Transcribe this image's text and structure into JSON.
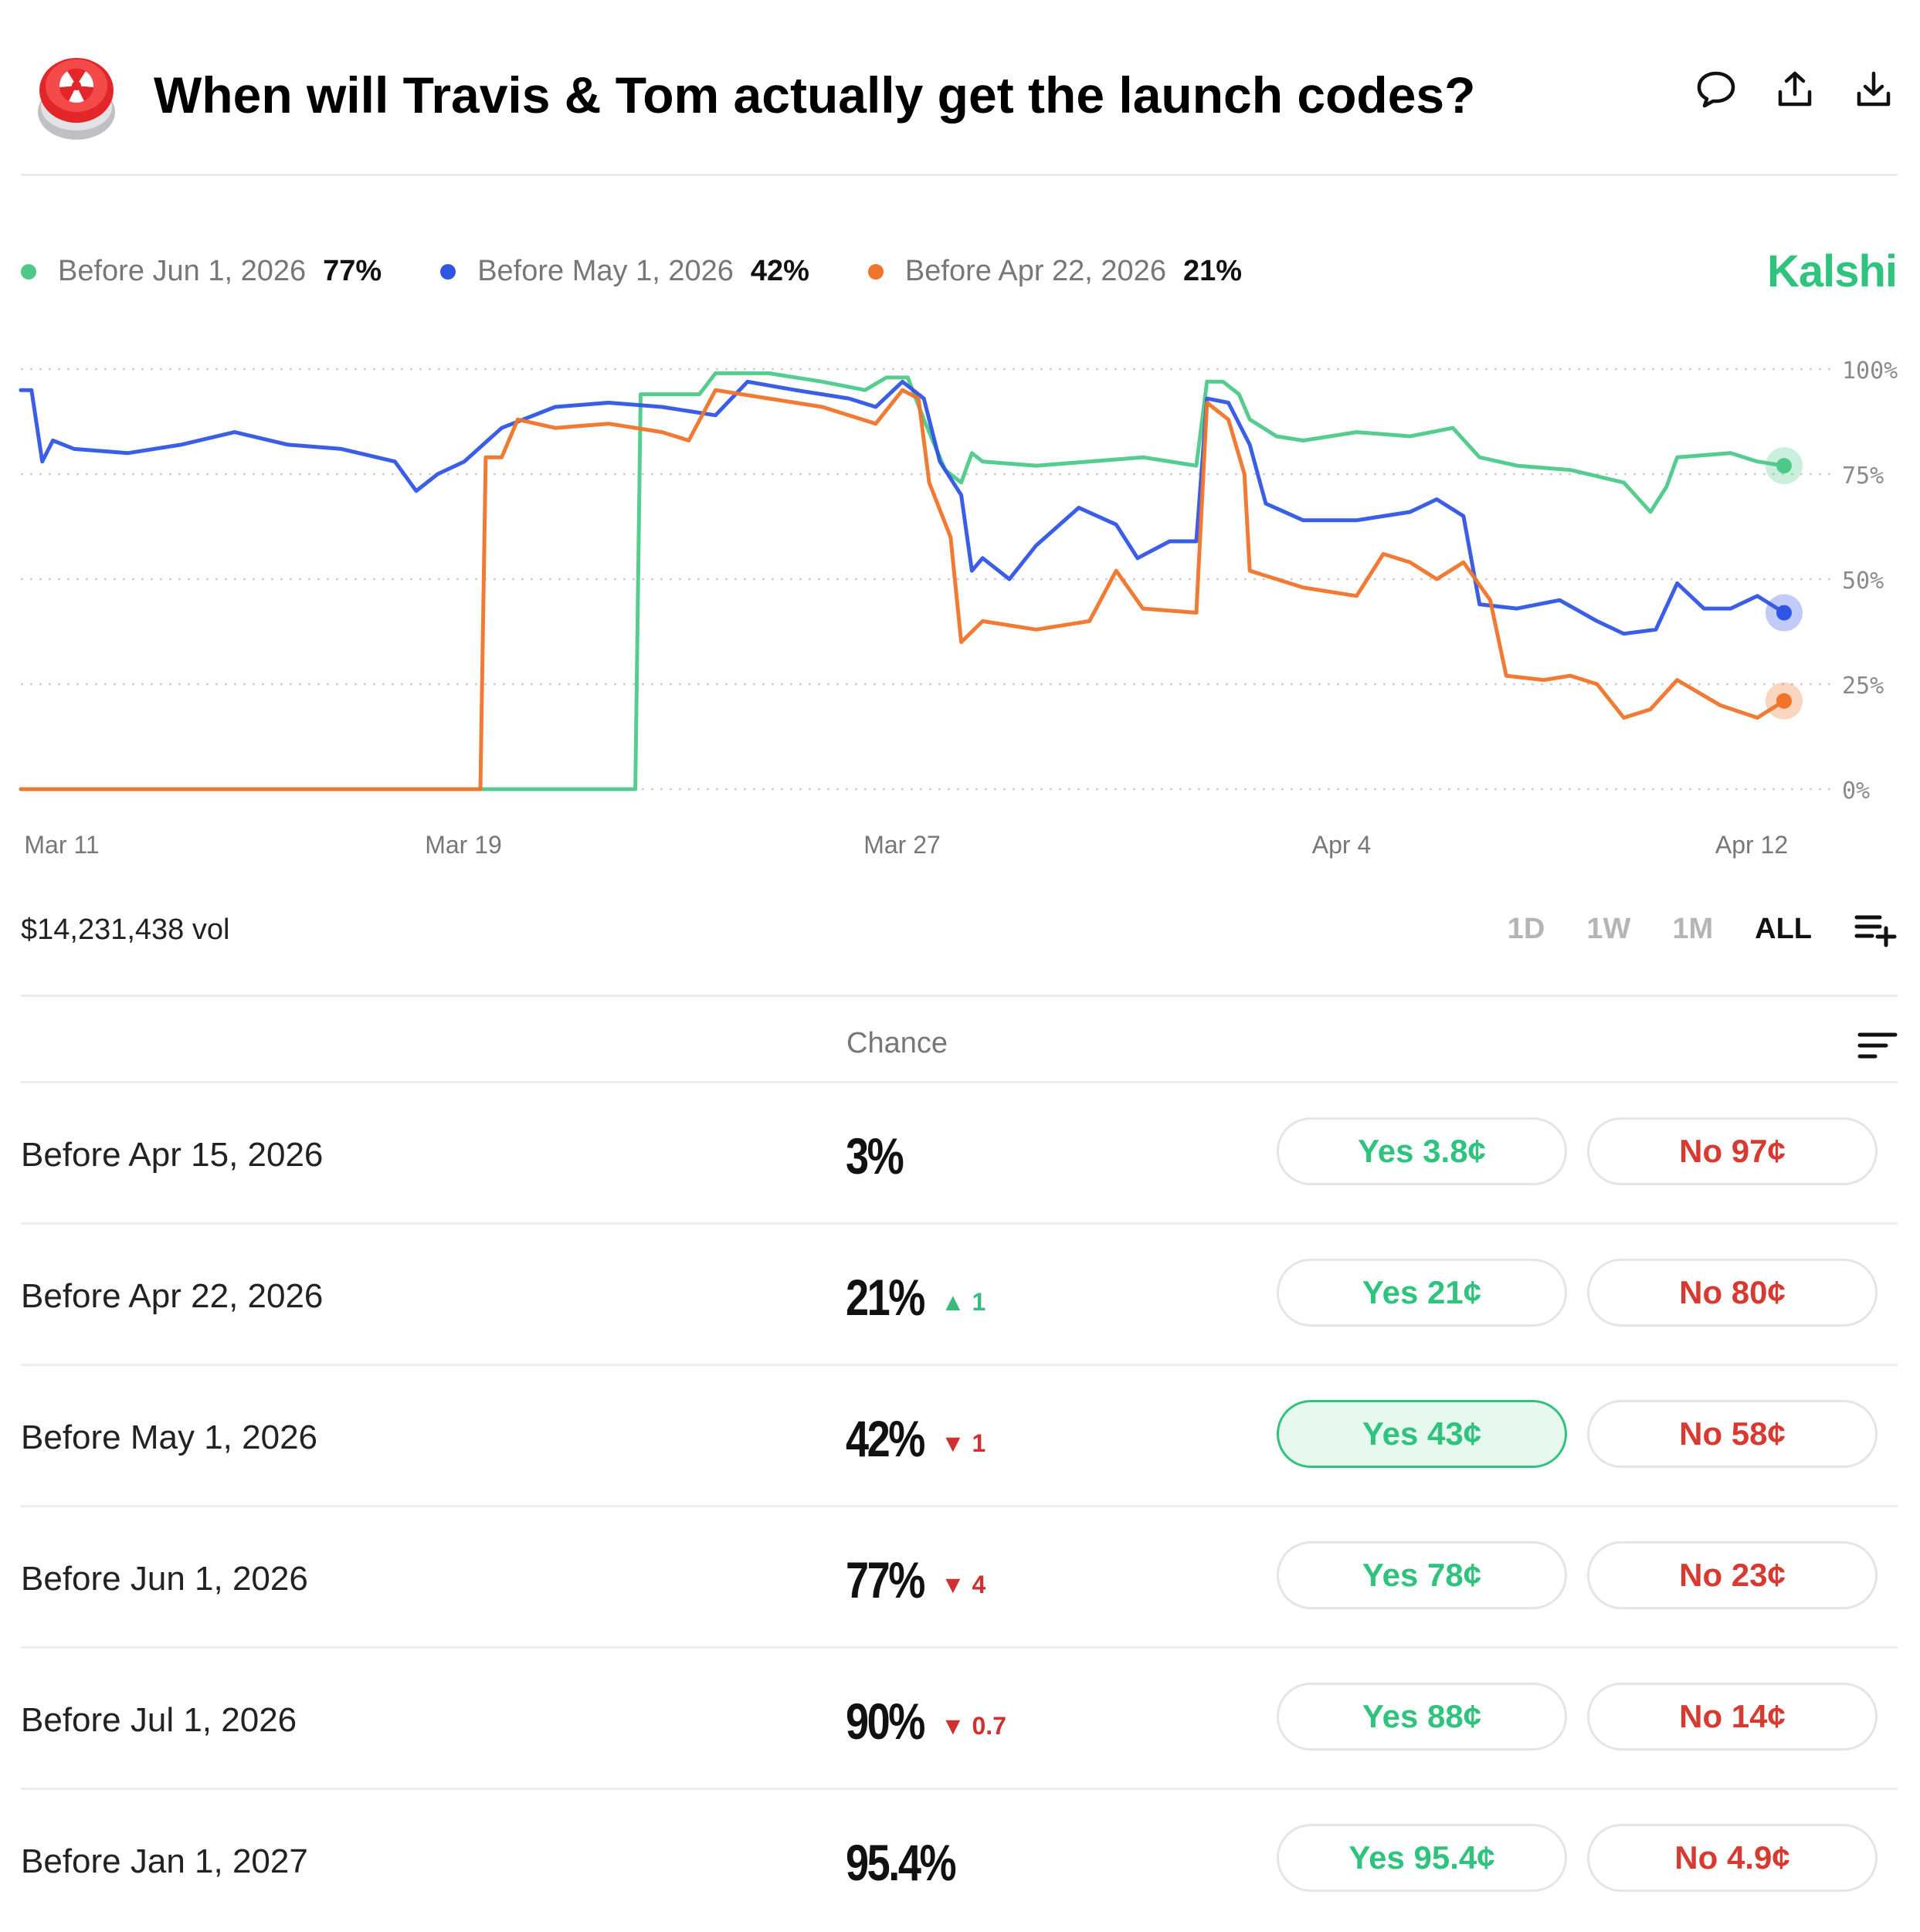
{
  "header": {
    "title": "When will Travis & Tom actually get the launch codes?",
    "icons": [
      "comment-icon",
      "share-icon",
      "download-icon"
    ]
  },
  "brand": "Kalshi",
  "legend": [
    {
      "label": "Before Jun 1, 2026",
      "value": "77%",
      "color": "#4ec98a"
    },
    {
      "label": "Before May 1, 2026",
      "value": "42%",
      "color": "#2f55e4"
    },
    {
      "label": "Before Apr 22, 2026",
      "value": "21%",
      "color": "#f0742a"
    }
  ],
  "chart_data": {
    "type": "line",
    "x_ticks": [
      "Mar 11",
      "Mar 19",
      "Mar 27",
      "Apr 4",
      "Apr 12"
    ],
    "y_ticks": [
      "100%",
      "75%",
      "50%",
      "25%",
      "0%"
    ],
    "ylim": [
      0,
      100
    ],
    "xlim": [
      "Mar 10",
      "Apr 12"
    ],
    "grid": true,
    "series": [
      {
        "name": "Before Jun 1, 2026",
        "color": "#4ec98a",
        "points": [
          [
            "Mar 10",
            0
          ],
          [
            "Mar 20",
            0
          ],
          [
            "Mar 21.5",
            0
          ],
          [
            "Mar 21.6",
            94
          ],
          [
            "Mar 22",
            94
          ],
          [
            "Mar 22.7",
            94
          ],
          [
            "Mar 23",
            99
          ],
          [
            "Mar 24",
            99
          ],
          [
            "Mar 25",
            97
          ],
          [
            "Mar 25.8",
            95
          ],
          [
            "Mar 26.2",
            98
          ],
          [
            "Mar 26.6",
            98
          ],
          [
            "Mar 26.9",
            88
          ],
          [
            "Mar 27.3",
            76
          ],
          [
            "Mar 27.6",
            73
          ],
          [
            "Mar 27.8",
            80
          ],
          [
            "Mar 28",
            78
          ],
          [
            "Mar 29",
            77
          ],
          [
            "Mar 30",
            78
          ],
          [
            "Mar 31",
            79
          ],
          [
            "Apr 1",
            77
          ],
          [
            "Apr 1.2",
            97
          ],
          [
            "Apr 1.5",
            97
          ],
          [
            "Apr 1.8",
            94
          ],
          [
            "Apr 2",
            88
          ],
          [
            "Apr 2.5",
            84
          ],
          [
            "Apr 3",
            83
          ],
          [
            "Apr 4",
            85
          ],
          [
            "Apr 5",
            84
          ],
          [
            "Apr 5.8",
            86
          ],
          [
            "Apr 6.3",
            79
          ],
          [
            "Apr 7",
            77
          ],
          [
            "Apr 8",
            76
          ],
          [
            "Apr 9",
            73
          ],
          [
            "Apr 9.5",
            66
          ],
          [
            "Apr 9.8",
            72
          ],
          [
            "Apr 10",
            79
          ],
          [
            "Apr 11",
            80
          ],
          [
            "Apr 11.5",
            78
          ],
          [
            "Apr 12",
            77
          ]
        ]
      },
      {
        "name": "Before May 1, 2026",
        "color": "#2f55e4",
        "points": [
          [
            "Mar 10",
            95
          ],
          [
            "Mar 10.2",
            95
          ],
          [
            "Mar 10.4",
            78
          ],
          [
            "Mar 10.6",
            83
          ],
          [
            "Mar 11",
            81
          ],
          [
            "Mar 12",
            80
          ],
          [
            "Mar 13",
            82
          ],
          [
            "Mar 14",
            85
          ],
          [
            "Mar 15",
            82
          ],
          [
            "Mar 16",
            81
          ],
          [
            "Mar 17",
            78
          ],
          [
            "Mar 17.4",
            71
          ],
          [
            "Mar 17.8",
            75
          ],
          [
            "Mar 18.3",
            78
          ],
          [
            "Mar 19",
            86
          ],
          [
            "Mar 20",
            91
          ],
          [
            "Mar 21",
            92
          ],
          [
            "Mar 22",
            91
          ],
          [
            "Mar 23",
            89
          ],
          [
            "Mar 23.6",
            97
          ],
          [
            "Mar 24.5",
            95
          ],
          [
            "Mar 25.5",
            93
          ],
          [
            "Mar 26",
            91
          ],
          [
            "Mar 26.5",
            97
          ],
          [
            "Mar 26.9",
            93
          ],
          [
            "Mar 27.2",
            78
          ],
          [
            "Mar 27.6",
            70
          ],
          [
            "Mar 27.8",
            52
          ],
          [
            "Mar 28",
            55
          ],
          [
            "Mar 28.5",
            50
          ],
          [
            "Mar 29",
            58
          ],
          [
            "Mar 29.8",
            67
          ],
          [
            "Mar 30.5",
            63
          ],
          [
            "Mar 30.9",
            55
          ],
          [
            "Mar 31.5",
            59
          ],
          [
            "Apr 1",
            59
          ],
          [
            "Apr 1.2",
            93
          ],
          [
            "Apr 1.6",
            92
          ],
          [
            "Apr 2",
            82
          ],
          [
            "Apr 2.3",
            68
          ],
          [
            "Apr 3",
            64
          ],
          [
            "Apr 4",
            64
          ],
          [
            "Apr 5",
            66
          ],
          [
            "Apr 5.5",
            69
          ],
          [
            "Apr 6",
            65
          ],
          [
            "Apr 6.3",
            44
          ],
          [
            "Apr 7",
            43
          ],
          [
            "Apr 7.8",
            45
          ],
          [
            "Apr 8.5",
            40
          ],
          [
            "Apr 9",
            37
          ],
          [
            "Apr 9.6",
            38
          ],
          [
            "Apr 10",
            49
          ],
          [
            "Apr 10.5",
            43
          ],
          [
            "Apr 11",
            43
          ],
          [
            "Apr 11.5",
            46
          ],
          [
            "Apr 12",
            42
          ]
        ]
      },
      {
        "name": "Before Apr 22, 2026",
        "color": "#f0742a",
        "points": [
          [
            "Mar 10",
            0
          ],
          [
            "Mar 18.6",
            0
          ],
          [
            "Mar 18.7",
            79
          ],
          [
            "Mar 19",
            79
          ],
          [
            "Mar 19.3",
            88
          ],
          [
            "Mar 20",
            86
          ],
          [
            "Mar 21",
            87
          ],
          [
            "Mar 22",
            85
          ],
          [
            "Mar 22.5",
            83
          ],
          [
            "Mar 23",
            95
          ],
          [
            "Mar 24",
            93
          ],
          [
            "Mar 25",
            91
          ],
          [
            "Mar 26",
            87
          ],
          [
            "Mar 26.5",
            95
          ],
          [
            "Mar 26.8",
            93
          ],
          [
            "Mar 27",
            73
          ],
          [
            "Mar 27.4",
            60
          ],
          [
            "Mar 27.6",
            35
          ],
          [
            "Mar 28",
            40
          ],
          [
            "Mar 29",
            38
          ],
          [
            "Mar 30",
            40
          ],
          [
            "Mar 30.5",
            52
          ],
          [
            "Mar 31",
            43
          ],
          [
            "Apr 1",
            42
          ],
          [
            "Apr 1.2",
            92
          ],
          [
            "Apr 1.6",
            88
          ],
          [
            "Apr 1.9",
            75
          ],
          [
            "Apr 2",
            52
          ],
          [
            "Apr 3",
            48
          ],
          [
            "Apr 4",
            46
          ],
          [
            "Apr 4.5",
            56
          ],
          [
            "Apr 5",
            54
          ],
          [
            "Apr 5.5",
            50
          ],
          [
            "Apr 6",
            54
          ],
          [
            "Apr 6.5",
            45
          ],
          [
            "Apr 6.8",
            27
          ],
          [
            "Apr 7.5",
            26
          ],
          [
            "Apr 8",
            27
          ],
          [
            "Apr 8.5",
            25
          ],
          [
            "Apr 9",
            17
          ],
          [
            "Apr 9.5",
            19
          ],
          [
            "Apr 10",
            26
          ],
          [
            "Apr 10.8",
            20
          ],
          [
            "Apr 11.5",
            17
          ],
          [
            "Apr 12",
            21
          ]
        ]
      }
    ],
    "end_values": [
      "77%",
      "42%",
      "21%"
    ]
  },
  "volume": "$14,231,438 vol",
  "ranges": [
    {
      "label": "1D",
      "active": false
    },
    {
      "label": "1W",
      "active": false
    },
    {
      "label": "1M",
      "active": false
    },
    {
      "label": "ALL",
      "active": true
    }
  ],
  "table": {
    "chance_header": "Chance",
    "rows": [
      {
        "label": "Before Apr 15, 2026",
        "chance": "3%",
        "change": "",
        "dir": "",
        "yes": "Yes 3.8¢",
        "no": "No 97¢",
        "selected": false
      },
      {
        "label": "Before Apr 22, 2026",
        "chance": "21%",
        "change": "▲ 1",
        "dir": "up",
        "yes": "Yes 21¢",
        "no": "No 80¢",
        "selected": false
      },
      {
        "label": "Before May 1, 2026",
        "chance": "42%",
        "change": "▼ 1",
        "dir": "down",
        "yes": "Yes 43¢",
        "no": "No 58¢",
        "selected": true
      },
      {
        "label": "Before Jun 1, 2026",
        "chance": "77%",
        "change": "▼ 4",
        "dir": "down",
        "yes": "Yes 78¢",
        "no": "No 23¢",
        "selected": false
      },
      {
        "label": "Before Jul 1, 2026",
        "chance": "90%",
        "change": "▼ 0.7",
        "dir": "down",
        "yes": "Yes 88¢",
        "no": "No 14¢",
        "selected": false
      },
      {
        "label": "Before Jan 1, 2027",
        "chance": "95.4%",
        "change": "",
        "dir": "",
        "yes": "Yes 95.4¢",
        "no": "No 4.9¢",
        "selected": false
      }
    ]
  }
}
